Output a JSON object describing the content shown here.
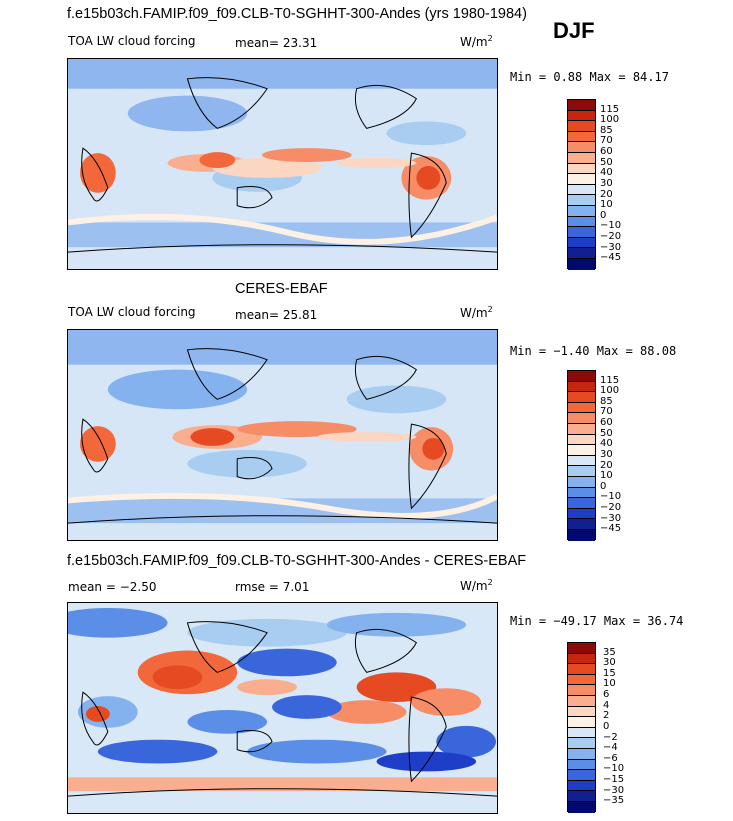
{
  "season": "DJF",
  "panels": [
    {
      "title": "f.e15b03ch.FAMIP.f09_f09.CLB-T0-SGHHT-300-Andes (yrs 1980-1984)",
      "subtitle": "TOA LW cloud forcing",
      "stat": "mean=  23.31",
      "units": "W/m",
      "units_exp": "2",
      "minmax": "Min =   0.88 Max =  84.17",
      "min": 0.88,
      "max": 84.17,
      "colorbar_labels": [
        "115",
        "100",
        "85",
        "70",
        "60",
        "50",
        "40",
        "30",
        "20",
        "10",
        "0",
        "−10",
        "−20",
        "−30",
        "−45"
      ],
      "colorbar_colors": [
        "#8b0a0a",
        "#c8250f",
        "#e64a22",
        "#f2683a",
        "#f68d66",
        "#f8ae8f",
        "#fbd6c2",
        "#fdf0e4",
        "#d8e8f6",
        "#a9cdf1",
        "#84b2ee",
        "#5b8ee6",
        "#3a66dc",
        "#1f3ec8",
        "#11208e",
        "#000a6e"
      ]
    },
    {
      "title": "CERES-EBAF",
      "subtitle": "TOA LW cloud forcing",
      "stat": "mean=  25.81",
      "units": "W/m",
      "units_exp": "2",
      "minmax": "Min =  −1.40 Max =  88.08",
      "min": -1.4,
      "max": 88.08,
      "colorbar_labels": [
        "115",
        "100",
        "85",
        "70",
        "60",
        "50",
        "40",
        "30",
        "20",
        "10",
        "0",
        "−10",
        "−20",
        "−30",
        "−45"
      ],
      "colorbar_colors": [
        "#8b0a0a",
        "#c8250f",
        "#e64a22",
        "#f2683a",
        "#f68d66",
        "#f8ae8f",
        "#fbd6c2",
        "#fdf0e4",
        "#d8e8f6",
        "#a9cdf1",
        "#84b2ee",
        "#5b8ee6",
        "#3a66dc",
        "#1f3ec8",
        "#11208e",
        "#000a6e"
      ]
    },
    {
      "title": "f.e15b03ch.FAMIP.f09_f09.CLB-T0-SGHHT-300-Andes - CERES-EBAF",
      "stat": "mean =  −2.50",
      "stat2": "rmse =   7.01",
      "units": "W/m",
      "units_exp": "2",
      "minmax": "Min = −49.17 Max =  36.74",
      "min": -49.17,
      "max": 36.74,
      "colorbar_labels": [
        "35",
        "30",
        "15",
        "10",
        "6",
        "4",
        "2",
        "0",
        "−2",
        "−4",
        "−6",
        "−10",
        "−15",
        "−30",
        "−35"
      ],
      "colorbar_colors": [
        "#8b0a0a",
        "#c8250f",
        "#e64a22",
        "#f2683a",
        "#f68d66",
        "#f8ae8f",
        "#fbd6c2",
        "#fdf0e4",
        "#d8e8f6",
        "#a9cdf1",
        "#84b2ee",
        "#5b8ee6",
        "#3a66dc",
        "#1f3ec8",
        "#11208e",
        "#000a6e"
      ]
    }
  ],
  "colors": {
    "base_light": "#d6e6f7",
    "mid_blue": "#8fb6ee",
    "deep_blue": "#3f6ddf",
    "warm": "#f6a07e",
    "hot": "#e5532a",
    "coast": "#000000"
  }
}
